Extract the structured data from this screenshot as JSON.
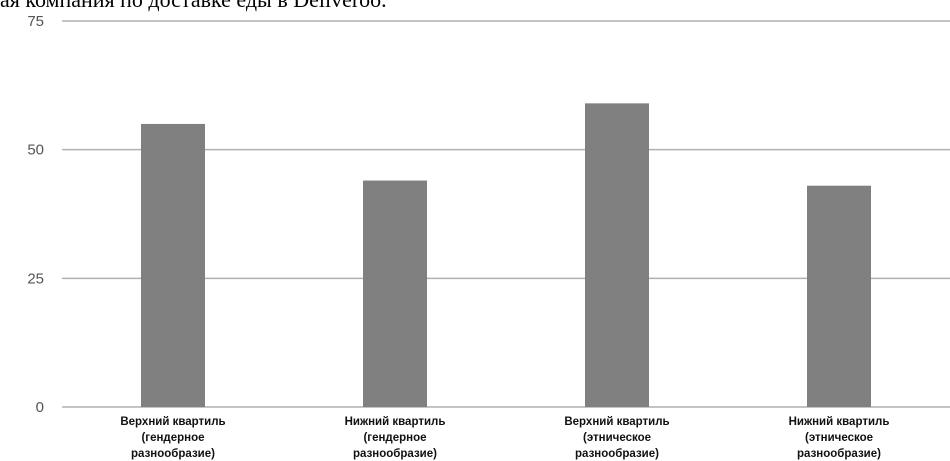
{
  "title": "ая компания по доставке еды в Deliveroo.",
  "chart_data": {
    "type": "bar",
    "title": "ая компания по доставке еды в Deliveroo.",
    "categories": [
      [
        "Верхний квартиль",
        "(гендерное",
        "разнообразие)"
      ],
      [
        "Нижний квартиль",
        "(гендерное",
        "разнообразие)"
      ],
      [
        "Верхний квартиль",
        "(этническое",
        "разнообразие)"
      ],
      [
        "Нижний квартиль",
        "(этническое",
        "разнообразие)"
      ]
    ],
    "values": [
      55,
      44,
      59,
      43
    ],
    "ylim": [
      0,
      75
    ],
    "yticks": [
      0,
      25,
      50,
      75
    ],
    "grid": true,
    "bar_color": "#808080",
    "grid_color": "#b0b0b0",
    "xlabel": "",
    "ylabel": ""
  }
}
